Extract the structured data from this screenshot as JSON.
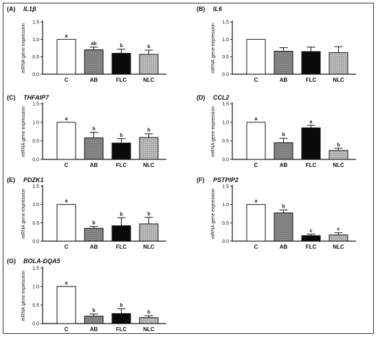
{
  "figure": {
    "ylabel": "mRNA gene expression",
    "colors": {
      "C": "#ffffff",
      "AB": "#8a8a8a",
      "FLC": "#0a0a0a",
      "NLC": "#b4b4b4"
    }
  },
  "chart_data": [
    {
      "type": "bar",
      "panel": "(A)",
      "gene": "IL1β",
      "ylabel": "mRNA gene expression",
      "categories": [
        "C",
        "AB",
        "FLC",
        "NLC"
      ],
      "values": [
        1.0,
        0.7,
        0.6,
        0.57
      ],
      "errors": [
        0,
        0.08,
        0.12,
        0.12
      ],
      "letters": [
        "a",
        "ab",
        "b",
        "b"
      ],
      "ylim": [
        0,
        1.5
      ],
      "yticks": [
        "0.0",
        "0.5",
        "1.0",
        "1.5"
      ]
    },
    {
      "type": "bar",
      "panel": "(B)",
      "gene": "IL6",
      "ylabel": "mRNA gene expression",
      "categories": [
        "C",
        "AB",
        "FLC",
        "NLC"
      ],
      "values": [
        1.0,
        0.66,
        0.65,
        0.62
      ],
      "errors": [
        0,
        0.1,
        0.13,
        0.17
      ],
      "letters": [
        "",
        "",
        "",
        ""
      ],
      "ylim": [
        0,
        1.5
      ],
      "yticks": [
        "0.0",
        "0.5",
        "1.0",
        "1.5"
      ]
    },
    {
      "type": "bar",
      "panel": "(C)",
      "gene": "THFAIP7",
      "ylabel": "mRNA gene expression",
      "categories": [
        "C",
        "AB",
        "FLC",
        "NLC"
      ],
      "values": [
        1.0,
        0.58,
        0.44,
        0.59
      ],
      "errors": [
        0,
        0.15,
        0.12,
        0.1
      ],
      "letters": [
        "a",
        "b",
        "b",
        "b"
      ],
      "ylim": [
        0,
        1.5
      ],
      "yticks": [
        "0.0",
        "0.5",
        "1.0",
        "1.5"
      ]
    },
    {
      "type": "bar",
      "panel": "(D)",
      "gene": "CCL2",
      "ylabel": "mRNA gene expression",
      "categories": [
        "C",
        "AB",
        "FLC",
        "NLC"
      ],
      "values": [
        1.0,
        0.45,
        0.85,
        0.24
      ],
      "errors": [
        0,
        0.12,
        0.07,
        0.06
      ],
      "letters": [
        "a",
        "b",
        "a",
        "b"
      ],
      "ylim": [
        0,
        1.5
      ],
      "yticks": [
        "0.0",
        "0.5",
        "1.0",
        "1.5"
      ]
    },
    {
      "type": "bar",
      "panel": "(E)",
      "gene": "PDZK1",
      "ylabel": "mRNA gene expression",
      "categories": [
        "C",
        "AB",
        "FLC",
        "NLC"
      ],
      "values": [
        1.0,
        0.35,
        0.42,
        0.47
      ],
      "errors": [
        0,
        0.05,
        0.22,
        0.18
      ],
      "letters": [
        "a",
        "b",
        "b",
        "b"
      ],
      "ylim": [
        0,
        1.5
      ],
      "yticks": [
        "0.0",
        "0.5",
        "1.0",
        "1.5"
      ]
    },
    {
      "type": "bar",
      "panel": "(F)",
      "gene": "PSTPIP2",
      "ylabel": "mRNA gene expression",
      "categories": [
        "C",
        "AB",
        "FLC",
        "NLC"
      ],
      "values": [
        1.0,
        0.77,
        0.15,
        0.17
      ],
      "errors": [
        0,
        0.08,
        0.04,
        0.06
      ],
      "letters": [
        "a",
        "b",
        "c",
        "c"
      ],
      "ylim": [
        0,
        1.5
      ],
      "yticks": [
        "0.0",
        "0.5",
        "1.0",
        "1.5"
      ]
    },
    {
      "type": "bar",
      "panel": "(G)",
      "gene": "BOLA-DQA5",
      "ylabel": "mRNA gene expression",
      "categories": [
        "C",
        "AB",
        "FLC",
        "NLC"
      ],
      "values": [
        1.0,
        0.2,
        0.27,
        0.16
      ],
      "errors": [
        0,
        0.06,
        0.13,
        0.05
      ],
      "letters": [
        "a",
        "b",
        "b",
        "b"
      ],
      "ylim": [
        0,
        1.5
      ],
      "yticks": [
        "0.0",
        "0.5",
        "1.0",
        "1.5"
      ]
    }
  ]
}
